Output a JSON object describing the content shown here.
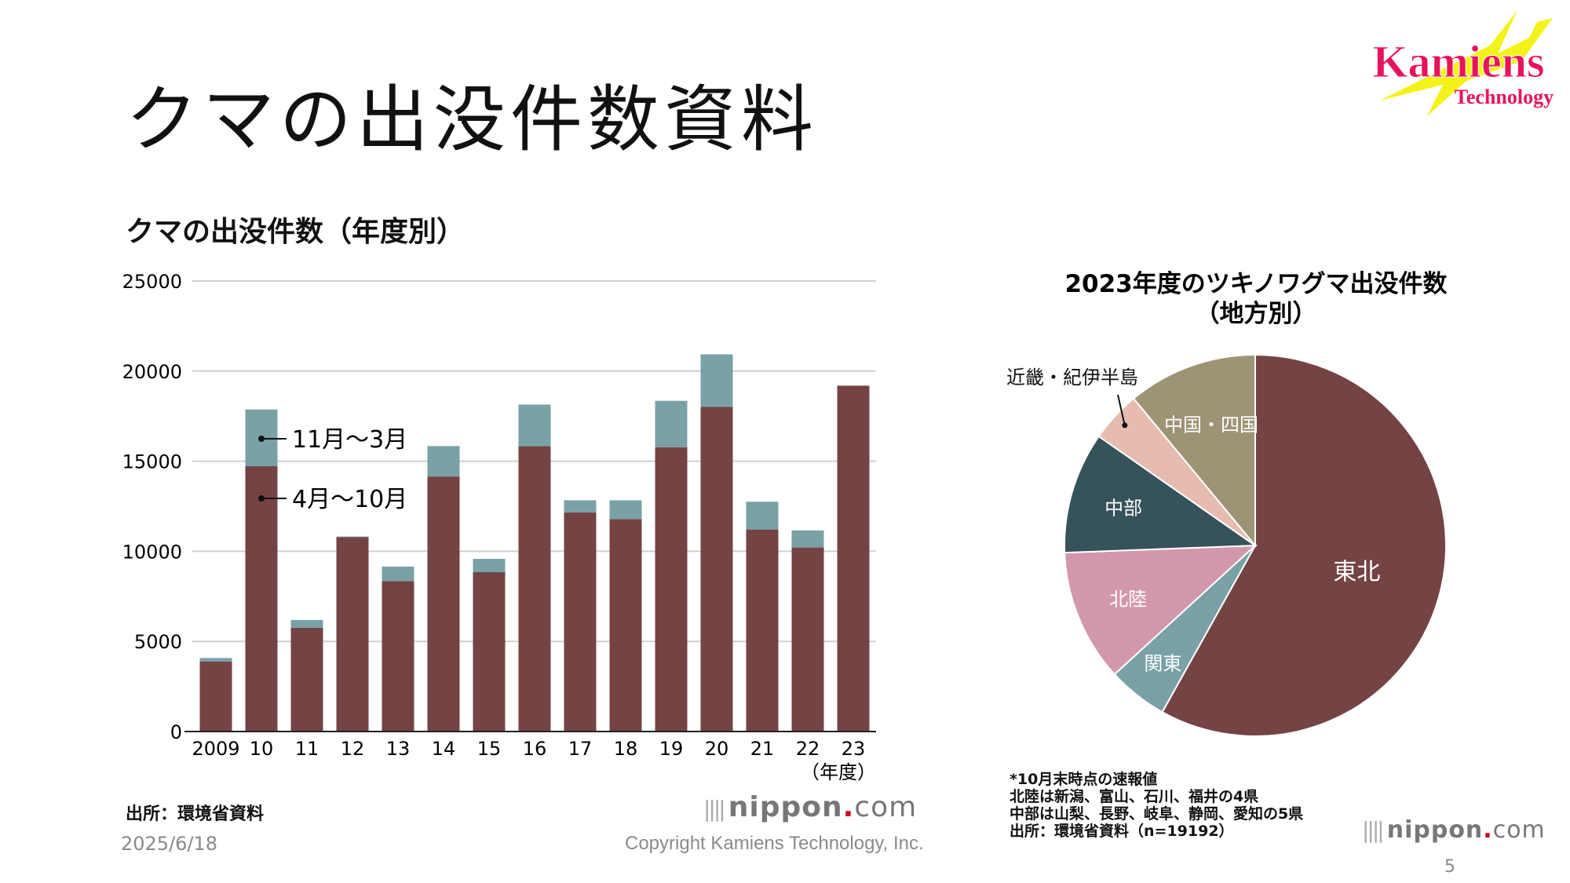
{
  "slide": {
    "title": "クマの出没件数資料",
    "date": "2025/6/18",
    "copyright": "Copyright Kamiens Technology, Inc.",
    "page_number": "5",
    "logo": {
      "text_main": "Kamiens",
      "text_sub": "Technology",
      "colors": {
        "text": "#e8135a",
        "bolt": "#f5f21a"
      }
    }
  },
  "left_panel": {
    "heading": "クマの出没件数（年度別）",
    "source": "出所：環境省資料",
    "brand": {
      "name": "nippon",
      "dot": ".",
      "suffix": "com"
    }
  },
  "right_panel": {
    "notes": [
      "*10月末時点の速報値",
      "北陸は新潟、富山、石川、福井の4県",
      "中部は山梨、長野、岐阜、静岡、愛知の5県",
      "出所：環境省資料（n=19192）"
    ],
    "brand": {
      "name": "nippon",
      "dot": ".",
      "suffix": "com"
    }
  },
  "chart_data": [
    {
      "type": "bar",
      "stacked": true,
      "title": "クマの出没件数（年度別）",
      "xlabel": "（年度）",
      "ylabel": "",
      "ylim": [
        0,
        25000
      ],
      "yticks": [
        "0",
        "5000",
        "10000",
        "15000",
        "20000",
        "25000"
      ],
      "grid": true,
      "categories": [
        "2009",
        "10",
        "11",
        "12",
        "13",
        "14",
        "15",
        "16",
        "17",
        "18",
        "19",
        "20",
        "21",
        "22",
        "23"
      ],
      "series": [
        {
          "name": "4月〜10月",
          "color": "#744344",
          "values": [
            3890,
            14720,
            5750,
            10780,
            8350,
            14150,
            8840,
            15830,
            12160,
            11780,
            15770,
            18010,
            11210,
            10210,
            19192
          ]
        },
        {
          "name": "11月〜3月",
          "color": "#79a1a6",
          "values": [
            190,
            3150,
            440,
            40,
            800,
            1690,
            740,
            2310,
            670,
            1050,
            2580,
            2920,
            1540,
            950,
            0
          ]
        }
      ],
      "legend": "inline-annotation"
    },
    {
      "type": "pie",
      "title": [
        "2023年度のツキノワグマ出没件数",
        "（地方別）"
      ],
      "start": "top",
      "direction": "clockwise",
      "slices": [
        {
          "label": "東北",
          "value": 58.1,
          "color": "#744344",
          "label_color": "#ffffff"
        },
        {
          "label": "関東",
          "value": 5.1,
          "color": "#79a1a6",
          "label_color": "#ffffff"
        },
        {
          "label": "北陸",
          "value": 11.2,
          "color": "#d297aa",
          "label_color": "#ffffff"
        },
        {
          "label": "中部",
          "value": 10.3,
          "color": "#36525a",
          "label_color": "#ffffff"
        },
        {
          "label": "近畿・紀伊半島",
          "value": 4.3,
          "color": "#e5bcaf",
          "label_color": "#111111"
        },
        {
          "label": "中国・四国",
          "value": 11.0,
          "color": "#9d9475",
          "label_color": "#ffffff"
        }
      ]
    }
  ]
}
